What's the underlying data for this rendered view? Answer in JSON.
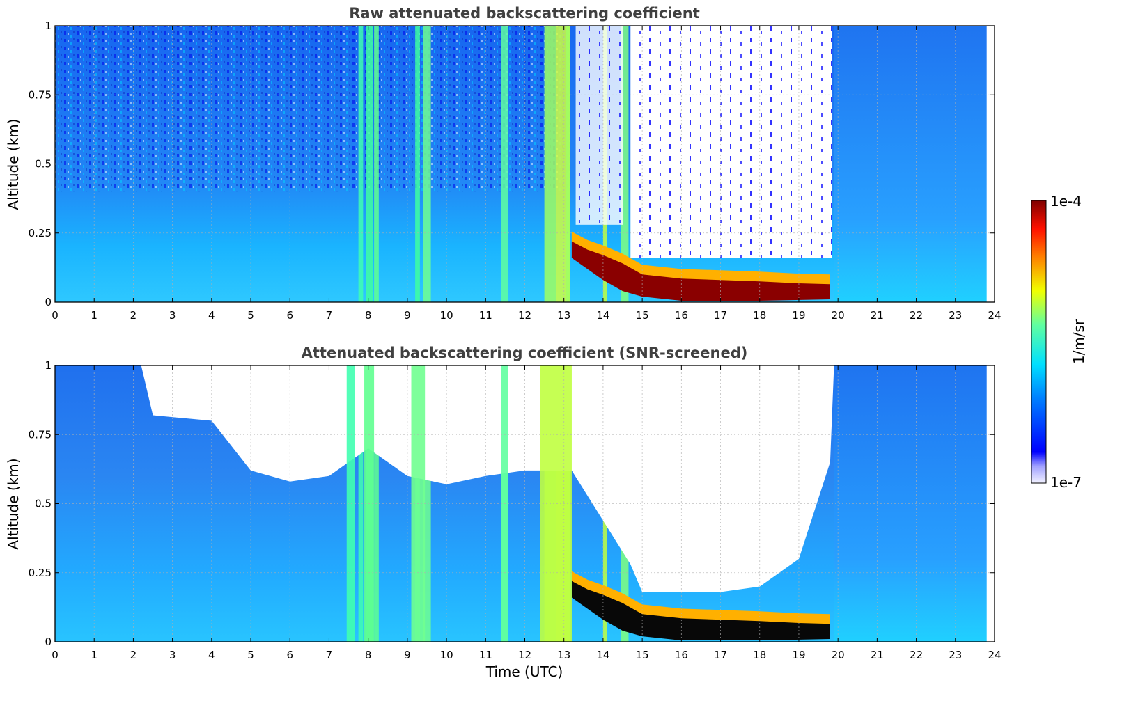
{
  "chart_data": [
    {
      "type": "heatmap",
      "title": "Raw attenuated backscattering coefficient",
      "ylabel": "Altitude (km)",
      "xlabel": "",
      "xlim": [
        0,
        24
      ],
      "ylim": [
        0,
        1
      ],
      "x_ticks": [
        "0",
        "1",
        "2",
        "3",
        "4",
        "5",
        "6",
        "7",
        "8",
        "9",
        "10",
        "11",
        "12",
        "13",
        "14",
        "15",
        "16",
        "17",
        "18",
        "19",
        "20",
        "21",
        "22",
        "23",
        "24"
      ],
      "y_ticks": [
        "0",
        "0.25",
        "0.5",
        "0.75",
        "1"
      ],
      "grid": true,
      "data_end_hour": 23.8,
      "features": [
        {
          "name": "clear-air background",
          "x": [
            0,
            13.2
          ],
          "y": [
            0,
            1
          ],
          "level": "blue-cyan"
        },
        {
          "name": "vertical streaks",
          "x": [
            7.9,
            8.2,
            9.5,
            11.5,
            12.8
          ],
          "level": "cyan-yellow"
        },
        {
          "name": "boundary layer aerosol top",
          "x": [
            13.2,
            19.8
          ],
          "y_top": [
            0.22,
            0.06
          ],
          "level": "dark red"
        },
        {
          "name": "noise region above layer",
          "x": [
            14.7,
            19.8
          ],
          "y": [
            0.15,
            1
          ],
          "level": "white / scattered blue"
        },
        {
          "name": "late period",
          "x": [
            19.9,
            23.8
          ],
          "y": [
            0,
            1
          ],
          "level": "blue-cyan"
        }
      ]
    },
    {
      "type": "heatmap",
      "title": "Attenuated backscattering coefficient (SNR-screened)",
      "ylabel": "Altitude (km)",
      "xlabel": "Time (UTC)",
      "xlim": [
        0,
        24
      ],
      "ylim": [
        0,
        1
      ],
      "x_ticks": [
        "0",
        "1",
        "2",
        "3",
        "4",
        "5",
        "6",
        "7",
        "8",
        "9",
        "10",
        "11",
        "12",
        "13",
        "14",
        "15",
        "16",
        "17",
        "18",
        "19",
        "20",
        "21",
        "22",
        "23",
        "24"
      ],
      "y_ticks": [
        "0",
        "0.25",
        "0.5",
        "0.75",
        "1"
      ],
      "grid": true,
      "data_end_hour": 23.8,
      "screen_top_km": [
        [
          0,
          1.0
        ],
        [
          2.2,
          1.0
        ],
        [
          2.5,
          0.82
        ],
        [
          4,
          0.8
        ],
        [
          5,
          0.62
        ],
        [
          6,
          0.58
        ],
        [
          7,
          0.6
        ],
        [
          8,
          0.7
        ],
        [
          9,
          0.6
        ],
        [
          10,
          0.57
        ],
        [
          11,
          0.6
        ],
        [
          12,
          0.62
        ],
        [
          13.2,
          0.62
        ],
        [
          14.7,
          0.28
        ],
        [
          15,
          0.18
        ],
        [
          17,
          0.18
        ],
        [
          18,
          0.2
        ],
        [
          19,
          0.3
        ],
        [
          19.8,
          0.65
        ],
        [
          19.9,
          1.0
        ],
        [
          23.8,
          1.0
        ]
      ],
      "features": [
        {
          "name": "boundary layer aerosol top",
          "x": [
            13.2,
            19.8
          ],
          "y_top": [
            0.22,
            0.06
          ],
          "level": "black (saturated)"
        }
      ]
    }
  ],
  "colorbar": {
    "max_label": "1e-4",
    "min_label": "1e-7",
    "unit_label": "1/m/sr",
    "colormap": "jet"
  }
}
